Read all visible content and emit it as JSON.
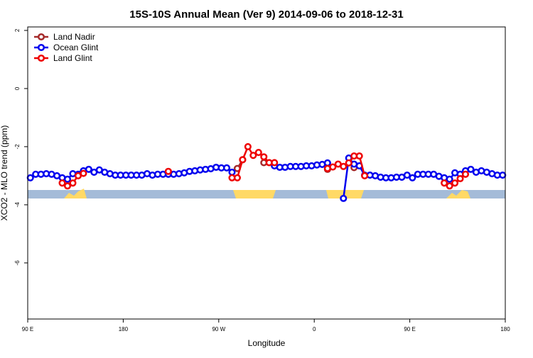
{
  "chart_data": {
    "type": "line",
    "title": "15S-10S Annual Mean (Ver 9)   2014-09-06 to 2018-12-31",
    "x_label": "Longitude",
    "y_label": "XCO2 - MLO trend (ppm)",
    "xlim": [
      90,
      540
    ],
    "ylim": [
      -7.93,
      2.12
    ],
    "xticks": [
      {
        "value": 90,
        "label": "90 E"
      },
      {
        "value": 180,
        "label": "180"
      },
      {
        "value": 270,
        "label": "90 W"
      },
      {
        "value": 360,
        "label": "0"
      },
      {
        "value": 450,
        "label": "90 E"
      },
      {
        "value": 540,
        "label": "180"
      }
    ],
    "yticks": [
      2,
      0,
      -2,
      -4,
      -6
    ],
    "legend": "top-left",
    "x": [
      92.5,
      97.5,
      102.5,
      107.5,
      112.5,
      117.5,
      122.5,
      127.5,
      132.5,
      137.5,
      142.5,
      147.5,
      152.5,
      157.5,
      162.5,
      167.5,
      172.5,
      177.5,
      182.5,
      187.5,
      192.5,
      197.5,
      202.5,
      207.5,
      212.5,
      217.5,
      222.5,
      227.5,
      232.5,
      237.5,
      242.5,
      247.5,
      252.5,
      257.5,
      262.5,
      267.5,
      272.5,
      277.5,
      282.5,
      287.5,
      292.5,
      297.5,
      302.5,
      307.5,
      312.5,
      317.5,
      322.5,
      327.5,
      332.5,
      337.5,
      342.5,
      347.5,
      352.5,
      357.5,
      362.5,
      367.5,
      372.5,
      377.5,
      382.5,
      387.5,
      392.5,
      397.5,
      402.5,
      407.5,
      412.5,
      417.5,
      422.5,
      427.5,
      432.5,
      437.5,
      442.5,
      447.5,
      452.5,
      457.5,
      462.5,
      467.5,
      472.5,
      477.5,
      482.5,
      487.5,
      492.5,
      497.5,
      502.5,
      507.5,
      512.5,
      517.5,
      522.5,
      527.5,
      532.5,
      537.5
    ],
    "series": [
      {
        "name": "Land Nadir",
        "color": "#a52a2a",
        "values": [
          null,
          null,
          null,
          null,
          null,
          null,
          null,
          null,
          null,
          null,
          null,
          null,
          null,
          null,
          null,
          null,
          null,
          null,
          null,
          null,
          null,
          null,
          null,
          null,
          null,
          null,
          null,
          null,
          null,
          null,
          null,
          null,
          null,
          null,
          null,
          null,
          null,
          null,
          null,
          -2.75,
          -2.45,
          null,
          null,
          null,
          -2.55,
          null,
          null,
          null,
          null,
          null,
          null,
          null,
          null,
          null,
          null,
          null,
          -2.78,
          null,
          null,
          null,
          null,
          -2.72,
          null,
          null,
          null,
          null,
          null,
          null,
          null,
          null,
          null,
          null,
          null,
          null,
          null,
          null,
          null,
          null,
          null,
          null,
          null,
          null,
          null,
          null,
          null,
          null,
          null,
          null,
          null,
          null
        ]
      },
      {
        "name": "Ocean Glint",
        "color": "#0000ee",
        "values": [
          -3.07,
          -2.95,
          -2.95,
          -2.93,
          -2.95,
          -3.0,
          -3.07,
          -3.12,
          -2.93,
          -2.95,
          -2.83,
          -2.78,
          -2.88,
          -2.8,
          -2.88,
          -2.93,
          -2.98,
          -2.98,
          -2.98,
          -2.98,
          -2.98,
          -2.98,
          -2.93,
          -2.98,
          -2.95,
          -2.95,
          -2.95,
          -2.95,
          -2.93,
          -2.9,
          -2.85,
          -2.83,
          -2.8,
          -2.78,
          -2.76,
          -2.71,
          -2.73,
          -2.73,
          -2.88,
          null,
          null,
          null,
          null,
          null,
          null,
          null,
          -2.66,
          -2.71,
          -2.71,
          -2.68,
          -2.68,
          -2.68,
          -2.66,
          -2.66,
          -2.63,
          -2.61,
          -2.56,
          null,
          null,
          -3.78,
          -2.39,
          -2.6,
          -2.66,
          -2.98,
          -2.98,
          -3.0,
          -3.05,
          -3.07,
          -3.07,
          -3.05,
          -3.05,
          -2.98,
          -3.07,
          -2.95,
          -2.95,
          -2.95,
          -2.95,
          -3.02,
          -3.07,
          -3.12,
          -2.9,
          -2.95,
          -2.83,
          -2.78,
          -2.88,
          -2.83,
          -2.88,
          -2.93,
          -2.98,
          -2.98
        ]
      },
      {
        "name": "Land Glint",
        "color": "#ee0000",
        "values": [
          null,
          null,
          null,
          null,
          null,
          null,
          -3.25,
          -3.35,
          -3.25,
          -3.0,
          -2.92,
          null,
          null,
          null,
          null,
          null,
          null,
          null,
          null,
          null,
          null,
          null,
          null,
          null,
          null,
          null,
          -2.85,
          null,
          null,
          null,
          null,
          null,
          null,
          null,
          null,
          null,
          null,
          null,
          -3.07,
          -3.07,
          -2.45,
          -2.0,
          -2.3,
          -2.2,
          -2.35,
          -2.55,
          -2.55,
          null,
          null,
          null,
          null,
          null,
          null,
          null,
          null,
          null,
          -2.75,
          -2.7,
          -2.6,
          -2.68,
          -2.56,
          -2.32,
          -2.32,
          -3.0,
          null,
          null,
          null,
          null,
          null,
          null,
          null,
          null,
          null,
          null,
          null,
          null,
          null,
          null,
          -3.25,
          -3.35,
          -3.25,
          -3.1,
          -2.95,
          null,
          null,
          null,
          null,
          null,
          null,
          null
        ]
      }
    ]
  }
}
